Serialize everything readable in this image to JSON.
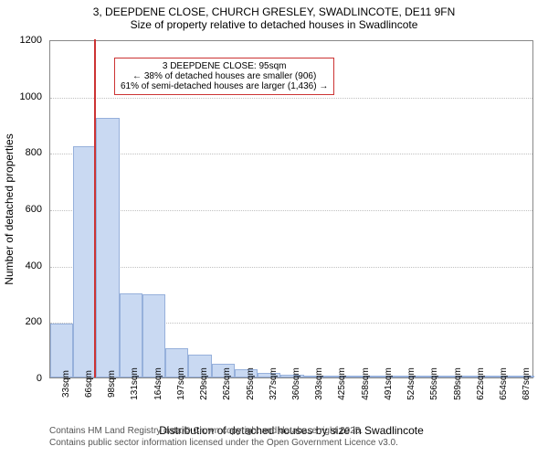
{
  "title_line1": "3, DEEPDENE CLOSE, CHURCH GRESLEY, SWADLINCOTE, DE11 9FN",
  "title_line2": "Size of property relative to detached houses in Swadlincote",
  "chart": {
    "type": "histogram",
    "x_labels": [
      "33sqm",
      "66sqm",
      "98sqm",
      "131sqm",
      "164sqm",
      "197sqm",
      "229sqm",
      "262sqm",
      "295sqm",
      "327sqm",
      "360sqm",
      "393sqm",
      "425sqm",
      "458sqm",
      "491sqm",
      "524sqm",
      "556sqm",
      "589sqm",
      "622sqm",
      "654sqm",
      "687sqm"
    ],
    "values": [
      190,
      820,
      920,
      300,
      295,
      105,
      80,
      50,
      30,
      15,
      10,
      5,
      3,
      3,
      2,
      2,
      1,
      1,
      1,
      1,
      1
    ],
    "ylim": [
      0,
      1200
    ],
    "y_ticks": [
      0,
      200,
      400,
      600,
      800,
      1000,
      1200
    ],
    "y_axis_label": "Number of detached properties",
    "x_axis_label": "Distribution of detached houses by size in Swadlincote",
    "bar_fill": "#c9d9f2",
    "bar_stroke": "#96b0db",
    "grid_color": "#c0c0c0",
    "plot_border": "#888888",
    "marker": {
      "position_pct": 9.0,
      "color": "#cc3333",
      "height_pct": 100
    },
    "callout": {
      "border_color": "#cc3333",
      "bg_color": "#ffffff",
      "line1": "3 DEEPDENE CLOSE: 95sqm",
      "line2": "← 38% of detached houses are smaller (906)",
      "line3": "61% of semi-detached houses are larger (1,436) →"
    }
  },
  "footer_line1": "Contains HM Land Registry data © Crown copyright and database right 2025.",
  "footer_line2": "Contains public sector information licensed under the Open Government Licence v3.0."
}
